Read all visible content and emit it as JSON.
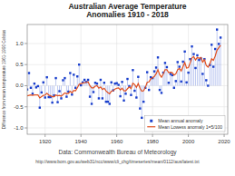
{
  "chart_data": {
    "type": "line",
    "title": "Australian Average Temperature\nAnomalies 1910 - 2018",
    "y_label": "Difference from mean temperature 1961-1990 Celsius",
    "annotations": [
      "Data: Commonwealth Bureau of Meteorology",
      "http://www.bom.gov.au/web31/ncc/www/cli_chg/timeseries/mean/0112/aus/latest.txt"
    ],
    "x": [
      1910,
      1911,
      1912,
      1913,
      1914,
      1915,
      1916,
      1917,
      1918,
      1919,
      1920,
      1921,
      1922,
      1923,
      1924,
      1925,
      1926,
      1927,
      1928,
      1929,
      1930,
      1931,
      1932,
      1933,
      1934,
      1935,
      1936,
      1937,
      1938,
      1939,
      1940,
      1941,
      1942,
      1943,
      1944,
      1945,
      1946,
      1947,
      1948,
      1949,
      1950,
      1951,
      1952,
      1953,
      1954,
      1955,
      1956,
      1957,
      1958,
      1959,
      1960,
      1961,
      1962,
      1963,
      1964,
      1965,
      1966,
      1967,
      1968,
      1969,
      1970,
      1971,
      1972,
      1973,
      1974,
      1975,
      1976,
      1977,
      1978,
      1979,
      1980,
      1981,
      1982,
      1983,
      1984,
      1985,
      1986,
      1987,
      1988,
      1989,
      1990,
      1991,
      1992,
      1993,
      1994,
      1995,
      1996,
      1997,
      1998,
      1999,
      2000,
      2001,
      2002,
      2003,
      2004,
      2005,
      2006,
      2007,
      2008,
      2009,
      2010,
      2011,
      2012,
      2013,
      2014,
      2015,
      2016,
      2017,
      2018
    ],
    "series": [
      {
        "name": "Mean annual anomaly",
        "type": "stem",
        "marker": "square",
        "color": "#1a3fcc",
        "values": [
          -0.09,
          0.3,
          -0.05,
          -0.19,
          0.05,
          -0.04,
          -0.01,
          -0.52,
          -0.16,
          0.08,
          -0.28,
          0.2,
          -0.27,
          -0.27,
          -0.4,
          -0.23,
          0.18,
          -0.39,
          -0.13,
          -0.3,
          0.13,
          0.18,
          -0.26,
          -0.14,
          0.3,
          -0.21,
          0.26,
          -0.05,
          0.22,
          0.5,
          0.01,
          0.08,
          0.14,
          0.09,
          0.14,
          -0.26,
          -0.43,
          -0.15,
          0.07,
          0.05,
          -0.3,
          0.14,
          -0.3,
          0.07,
          -0.38,
          -0.38,
          -0.43,
          0.08,
          -0.11,
          0.05,
          0.06,
          0.02,
          -0.25,
          0.09,
          -0.35,
          -0.19,
          0.16,
          -0.01,
          -0.22,
          0.37,
          -0.12,
          -0.28,
          0.21,
          -0.54,
          -0.76,
          -0.38,
          -0.05,
          0.32,
          -0.1,
          0.2,
          0.18,
          0.34,
          0.43,
          0.67,
          -0.1,
          -0.17,
          0.31,
          0.54,
          0.44,
          0.07,
          0.28,
          0.25,
          -0.05,
          0.11,
          0.56,
          0.45,
          0.1,
          0.57,
          0.81,
          0.08,
          0.31,
          0.63,
          0.93,
          0.75,
          0.42,
          0.72,
          0.61,
          0.65,
          0.28,
          0.63,
          0.13,
          0.0,
          0.49,
          0.97,
          0.45,
          0.87,
          1.33,
          0.99,
          1.14
        ]
      },
      {
        "name": "Mean Lowess anomaly 1=5/100",
        "type": "line",
        "line_style": "solid",
        "color": "#e05020",
        "values": [
          -0.24,
          -0.23,
          -0.22,
          -0.23,
          -0.22,
          -0.22,
          -0.22,
          -0.29,
          -0.26,
          -0.23,
          -0.22,
          -0.18,
          -0.22,
          -0.24,
          -0.26,
          -0.26,
          -0.22,
          -0.24,
          -0.23,
          -0.25,
          -0.21,
          -0.17,
          -0.19,
          -0.18,
          -0.13,
          -0.17,
          -0.11,
          -0.12,
          -0.05,
          0.03,
          0.05,
          0.06,
          0.07,
          0.08,
          0.09,
          0.0,
          -0.05,
          -0.05,
          -0.01,
          0.0,
          -0.06,
          -0.03,
          -0.09,
          -0.06,
          -0.12,
          -0.16,
          -0.19,
          -0.13,
          -0.12,
          -0.08,
          -0.06,
          -0.05,
          -0.1,
          -0.06,
          -0.12,
          -0.12,
          -0.07,
          -0.03,
          -0.07,
          0.06,
          0.03,
          -0.04,
          0.05,
          -0.06,
          -0.13,
          -0.12,
          -0.04,
          0.08,
          0.09,
          0.16,
          0.19,
          0.22,
          0.28,
          0.38,
          0.26,
          0.2,
          0.28,
          0.38,
          0.38,
          0.31,
          0.32,
          0.31,
          0.25,
          0.28,
          0.38,
          0.41,
          0.35,
          0.45,
          0.55,
          0.42,
          0.43,
          0.54,
          0.66,
          0.69,
          0.61,
          0.67,
          0.65,
          0.67,
          0.56,
          0.62,
          0.48,
          0.44,
          0.52,
          0.64,
          0.6,
          0.7,
          0.84,
          0.9,
          0.96
        ]
      }
    ],
    "xlim": [
      1910,
      2022
    ],
    "ylim": [
      -1.15,
      1.45
    ],
    "xticks": [
      1920,
      1940,
      1960,
      1980,
      2000,
      2020
    ],
    "yticks": [
      {
        "value": -1.0,
        "label": "-1.0"
      },
      -0.5,
      {
        "value": 0.0,
        "label": "0.0"
      },
      0.5,
      {
        "value": 1.0,
        "label": "1.0"
      }
    ],
    "grid": true,
    "legend": "lower right"
  }
}
